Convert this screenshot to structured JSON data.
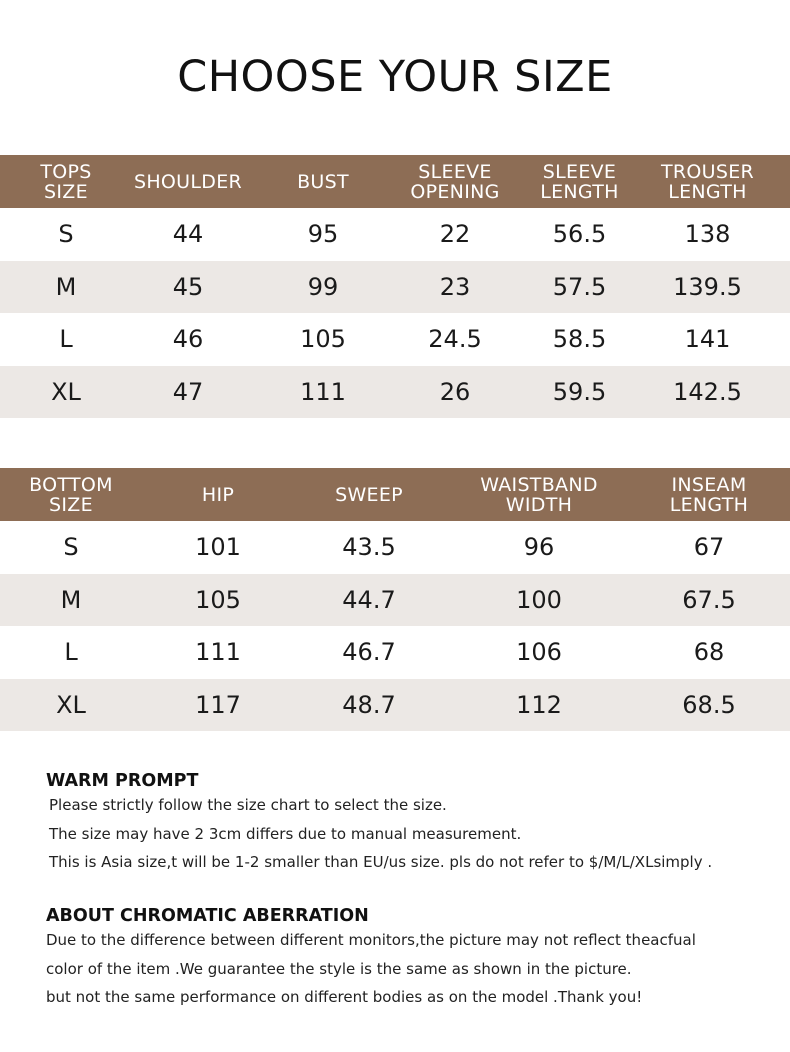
{
  "title": "CHOOSE YOUR SIZE",
  "tops_table": {
    "headers": [
      "TOPS\nSIZE",
      "SHOULDER",
      "BUST",
      "SLEEVE\nOPENING",
      "SLEEVE\nLENGTH",
      "TROUSER\nLENGTH"
    ],
    "rows": [
      [
        "S",
        "44",
        "95",
        "22",
        "56.5",
        "138"
      ],
      [
        "M",
        "45",
        "99",
        "23",
        "57.5",
        "139.5"
      ],
      [
        "L",
        "46",
        "105",
        "24.5",
        "58.5",
        "141"
      ],
      [
        "XL",
        "47",
        "111",
        "26",
        "59.5",
        "142.5"
      ]
    ]
  },
  "bottom_table": {
    "headers": [
      "BOTTOM\nSIZE",
      "HIP",
      "SWEEP",
      "WAISTBAND\nWIDTH",
      "INSEAM\nLENGTH"
    ],
    "rows": [
      [
        "S",
        "101",
        "43.5",
        "96",
        "67"
      ],
      [
        "M",
        "105",
        "44.7",
        "100",
        "67.5"
      ],
      [
        "L",
        "111",
        "46.7",
        "106",
        "68"
      ],
      [
        "XL",
        "117",
        "48.7",
        "112",
        "68.5"
      ]
    ]
  },
  "warm_prompt": {
    "heading": "WARM PROMPT",
    "lines": [
      "Please strictly follow the size chart to select the size.",
      "The size may have 2 3cm differs due to manual measurement.",
      "This is Asia size,t will be 1-2 smaller than EU/us size. pls do not refer to $/M/L/XLsimply ."
    ]
  },
  "chromatic": {
    "heading": "ABOUT CHROMATIC ABERRATION",
    "lines": [
      "Due to the difference between different monitors,the picture may not reflect theacfual",
      "color of the item .We guarantee the style is the same as shown in the picture.",
      "but not the same performance on different bodies as on the model .Thank you!"
    ]
  },
  "colors": {
    "header_bg": "#8d6d55",
    "alt_row_bg": "#ece8e5"
  }
}
